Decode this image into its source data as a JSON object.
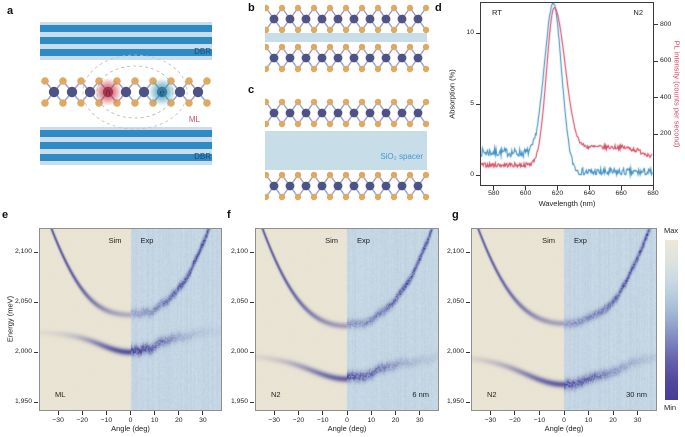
{
  "panels": {
    "a": {
      "letter": "a",
      "dbr_top_label": "DBR",
      "dbr_bottom_label": "DBR",
      "ml_label": "ML",
      "hole_label": "h",
      "electron_label": "e"
    },
    "b": {
      "letter": "b"
    },
    "c": {
      "letter": "c",
      "spacer_label": "SiO₂ spacer"
    },
    "d": {
      "letter": "d",
      "corner_left": "RT",
      "corner_right": "N2"
    },
    "e": {
      "letter": "e"
    },
    "f": {
      "letter": "f"
    },
    "g": {
      "letter": "g"
    }
  },
  "colorbar": {
    "max_label": "Max",
    "min_label": "Min",
    "stops": [
      "#ece7d6",
      "#dfe3df",
      "#cbd9e3",
      "#b3c8dc",
      "#9aaccf",
      "#7e87bf",
      "#6563ad",
      "#52499c",
      "#493c96"
    ]
  },
  "colors": {
    "sim_bg": "#e9e4d3",
    "exp_bg": "#c4d6e3",
    "branch": "#3c3a94",
    "absorption": "#3e8fc6",
    "pl": "#d7485f",
    "dbr_stripe": "#2e8bc4",
    "dbr_bg": "#c9dded",
    "dbr_text": "#1c4a77",
    "ml_text": "#c94f6b",
    "spacer": "#c7dde8",
    "spacer_text": "#3f9ad2",
    "metal_atom": "#4d5386",
    "chalcogen_atom": "#dfa961",
    "bond": "#9aa0c6",
    "hole_glow": "#c82a3c",
    "electron_glow": "#2b8fae",
    "hole_text": "#7a1f2d",
    "electron_text": "#174a68"
  },
  "chart_data": [
    {
      "id": "d",
      "type": "line",
      "xlabel": "Wavelength (nm)",
      "ylabel_left": "Absorption (%)",
      "ylabel_right": "PL intensity (counts per second)",
      "xlim": [
        572,
        680
      ],
      "xticks": [
        580,
        600,
        620,
        640,
        660,
        680
      ],
      "ylim_left": [
        0,
        12.1
      ],
      "yticks_left": [
        0,
        5,
        10
      ],
      "ylim_right": [
        0,
        950
      ],
      "yticks_right": [
        200,
        400,
        600,
        800
      ],
      "annotation_left": "RT",
      "annotation_right": "N2",
      "series": [
        {
          "name": "Absorption",
          "axis": "left",
          "color": "#3e8fc6",
          "peak_nm": 617.5,
          "peak_pct": 11.7,
          "baseline_low_pct": 1.6,
          "baseline_high_pct": 0.2,
          "points": [
            [
              575,
              1.8
            ],
            [
              585,
              1.5
            ],
            [
              595,
              1.5
            ],
            [
              600,
              1.7
            ],
            [
              605,
              2.6
            ],
            [
              610,
              5.0
            ],
            [
              614,
              8.8
            ],
            [
              617,
              11.7
            ],
            [
              620,
              9.5
            ],
            [
              624,
              4.5
            ],
            [
              628,
              1.8
            ],
            [
              632,
              0.6
            ],
            [
              640,
              0.25
            ],
            [
              660,
              0.2
            ],
            [
              680,
              0.3
            ]
          ]
        },
        {
          "name": "PL intensity",
          "axis": "right",
          "color": "#d7485f",
          "peak_nm": 618,
          "peak_counts": 900,
          "baseline_counts": 30,
          "points": [
            [
              575,
              35
            ],
            [
              590,
              30
            ],
            [
              600,
              45
            ],
            [
              605,
              120
            ],
            [
              610,
              370
            ],
            [
              615,
              790
            ],
            [
              618,
              900
            ],
            [
              622,
              700
            ],
            [
              626,
              420
            ],
            [
              630,
              240
            ],
            [
              636,
              160
            ],
            [
              645,
              135
            ],
            [
              655,
              140
            ],
            [
              662,
              150
            ],
            [
              670,
              128
            ],
            [
              676,
              105
            ],
            [
              680,
              90
            ]
          ]
        }
      ]
    },
    {
      "id": "e",
      "type": "heatmap",
      "model": "coupled-oscillator polariton dispersion",
      "xlabel": "Angle (deg)",
      "ylabel": "Energy (meV)",
      "xlim": [
        -37.5,
        37.5
      ],
      "xticks": [
        -30,
        -20,
        -10,
        0,
        10,
        20,
        30
      ],
      "ylim": [
        1942,
        2123
      ],
      "yticks": [
        1950,
        2000,
        2050,
        2100
      ],
      "half_labels": {
        "left": "Sim",
        "right": "Exp"
      },
      "corner_labels": {
        "bottom_left": "ML",
        "bottom_right": ""
      },
      "exciton_meV": 2022,
      "cavity_min_meV": 2015,
      "cavity_curvature_meV_per_deg2": 0.098,
      "coupling_g_meV": 18.3,
      "lower_polariton_min_meV": 2000,
      "upper_polariton_min_meV": 2037
    },
    {
      "id": "f",
      "type": "heatmap",
      "model": "coupled-oscillator polariton dispersion",
      "xlabel": "Angle (deg)",
      "ylabel": "Energy (meV)",
      "xlim": [
        -37.5,
        37.5
      ],
      "xticks": [
        -30,
        -20,
        -10,
        0,
        10,
        20,
        30
      ],
      "ylim": [
        1942,
        2123
      ],
      "yticks": [
        1950,
        2000,
        2050,
        2100
      ],
      "half_labels": {
        "left": "Sim",
        "right": "Exp"
      },
      "corner_labels": {
        "bottom_left": "N2",
        "bottom_right": "6 nm"
      },
      "exciton_meV": 2000,
      "cavity_min_meV": 1999,
      "cavity_curvature_meV_per_deg2": 0.098,
      "coupling_g_meV": 26.5,
      "lower_polariton_min_meV": 1973,
      "upper_polariton_min_meV": 2026
    },
    {
      "id": "g",
      "type": "heatmap",
      "model": "coupled-oscillator polariton dispersion",
      "xlabel": "Angle (deg)",
      "ylabel": "Energy (meV)",
      "xlim": [
        -37.5,
        37.5
      ],
      "xticks": [
        -30,
        -20,
        -10,
        0,
        10,
        20,
        30
      ],
      "ylim": [
        1942,
        2123
      ],
      "yticks": [
        1950,
        2000,
        2050,
        2100
      ],
      "half_labels": {
        "left": "Sim",
        "right": "Exp"
      },
      "corner_labels": {
        "bottom_left": "N2",
        "bottom_right": "30 nm"
      },
      "exciton_meV": 2000,
      "cavity_min_meV": 1996,
      "cavity_curvature_meV_per_deg2": 0.098,
      "coupling_g_meV": 30.4,
      "lower_polariton_min_meV": 1966,
      "upper_polariton_min_meV": 2027
    }
  ]
}
